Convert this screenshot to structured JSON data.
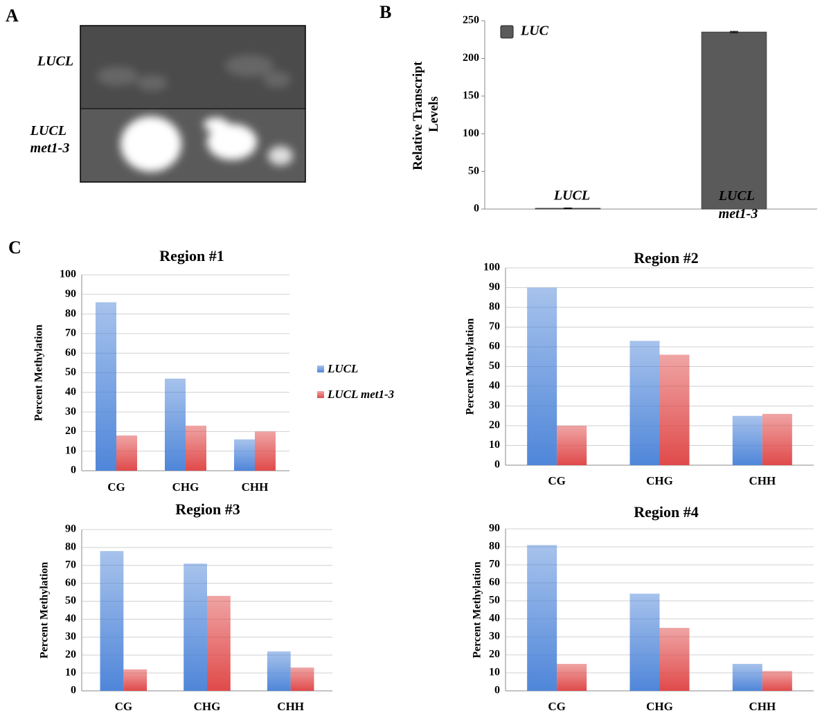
{
  "panel_labels": [
    "A",
    "B",
    "C"
  ],
  "image_panel": {
    "labels": [
      "LUCL",
      "LUCL met1-3"
    ]
  },
  "chart_data": [
    {
      "type": "bar",
      "y_label": "Relative Transcript Levels",
      "categories": [
        "LUCL",
        "LUCL met1-3"
      ],
      "series": [
        {
          "name": "LUC",
          "color": "#5a5a5a",
          "values": [
            1,
            235
          ],
          "errors": [
            0.5,
            1
          ]
        }
      ],
      "ylim": [
        0,
        250
      ],
      "yticks": [
        0,
        50,
        100,
        150,
        200,
        250
      ],
      "grid": false
    },
    {
      "type": "grouped_bar",
      "title": "Region #1",
      "y_label": "Percent Methylation",
      "categories": [
        "CG",
        "CHG",
        "CHH"
      ],
      "series": [
        {
          "name": "LUCL",
          "color": "#4f86d9",
          "values": [
            86,
            47,
            16
          ]
        },
        {
          "name": "LUCL met1-3",
          "color": "#e04a4a",
          "values": [
            18,
            23,
            20
          ]
        }
      ],
      "ylim": [
        0,
        100
      ],
      "yticks": [
        0,
        10,
        20,
        30,
        40,
        50,
        60,
        70,
        80,
        90,
        100
      ],
      "grid": true
    },
    {
      "type": "grouped_bar",
      "title": "Region #2",
      "y_label": "Percent Methylation",
      "categories": [
        "CG",
        "CHG",
        "CHH"
      ],
      "series": [
        {
          "color": "#4f86d9",
          "values": [
            90,
            63,
            25
          ]
        },
        {
          "color": "#e04a4a",
          "values": [
            20,
            56,
            26
          ]
        }
      ],
      "ylim": [
        0,
        100
      ],
      "yticks": [
        0,
        10,
        20,
        30,
        40,
        50,
        60,
        70,
        80,
        90,
        100
      ],
      "grid": true
    },
    {
      "type": "grouped_bar",
      "title": "Region #3",
      "y_label": "Percent Methylation",
      "categories": [
        "CG",
        "CHG",
        "CHH"
      ],
      "series": [
        {
          "color": "#4f86d9",
          "values": [
            78,
            71,
            22
          ]
        },
        {
          "color": "#e04a4a",
          "values": [
            12,
            53,
            13
          ]
        }
      ],
      "ylim": [
        0,
        90
      ],
      "yticks": [
        0,
        10,
        20,
        30,
        40,
        50,
        60,
        70,
        80,
        90
      ],
      "grid": true
    },
    {
      "type": "grouped_bar",
      "title": "Region #4",
      "y_label": "Percent Methylation",
      "categories": [
        "CG",
        "CHG",
        "CHH"
      ],
      "series": [
        {
          "color": "#4f86d9",
          "values": [
            81,
            54,
            15
          ]
        },
        {
          "color": "#e04a4a",
          "values": [
            15,
            35,
            11
          ]
        }
      ],
      "ylim": [
        0,
        90
      ],
      "yticks": [
        0,
        10,
        20,
        30,
        40,
        50,
        60,
        70,
        80,
        90
      ],
      "grid": true
    }
  ]
}
